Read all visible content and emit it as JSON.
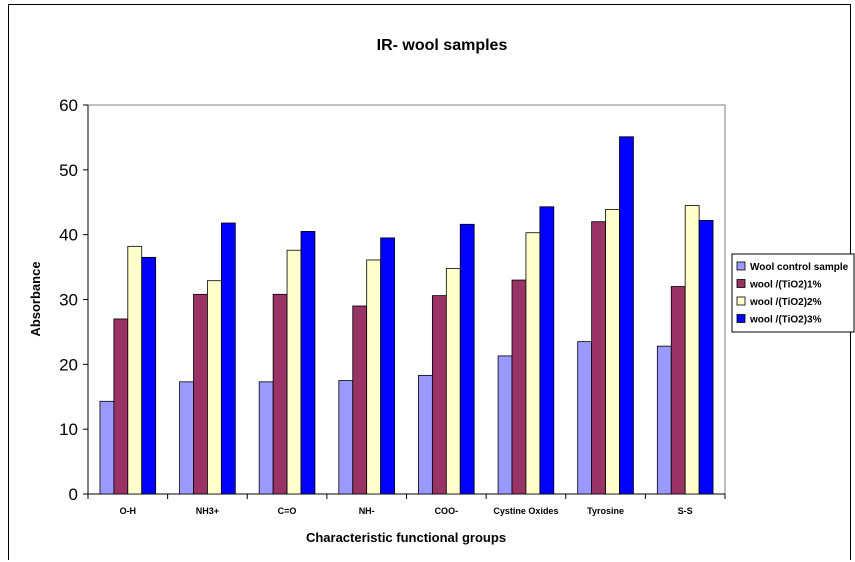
{
  "chart_data": {
    "type": "bar",
    "title": "IR- wool samples",
    "xlabel": "Characteristic functional groups",
    "ylabel": "Absorbance",
    "ylim": [
      0,
      60
    ],
    "yticks": [
      0,
      10,
      20,
      30,
      40,
      50,
      60
    ],
    "grid": false,
    "legend_position": "right",
    "categories": [
      "O-H",
      "NH3+",
      "C=O",
      "NH-",
      "COO-",
      "Cystine Oxides",
      "Tyrosine",
      "S-S"
    ],
    "series": [
      {
        "name": "Wool control sample",
        "color": "#9999ff",
        "values": [
          14.3,
          17.3,
          17.3,
          17.5,
          18.3,
          21.3,
          23.5,
          22.8
        ]
      },
      {
        "name": "wool /(TiO2)1%",
        "color": "#993366",
        "values": [
          27.0,
          30.8,
          30.8,
          29.0,
          30.6,
          33.0,
          42.0,
          32.0
        ]
      },
      {
        "name": "wool /(TiO2)2%",
        "color": "#ffffcc",
        "values": [
          38.2,
          32.9,
          37.6,
          36.1,
          34.8,
          40.3,
          43.9,
          44.5
        ]
      },
      {
        "name": "wool /(TiO2)3%",
        "color": "#0000ff",
        "values": [
          36.5,
          41.8,
          40.5,
          39.5,
          41.6,
          44.3,
          55.1,
          42.2
        ]
      }
    ]
  }
}
